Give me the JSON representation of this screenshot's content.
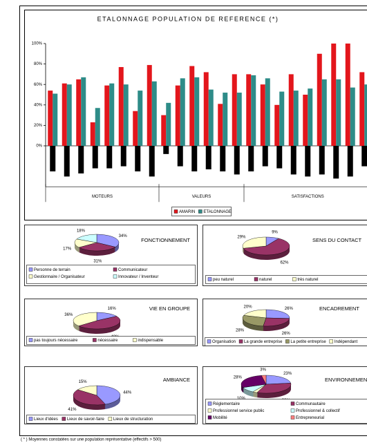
{
  "chart_data": [
    {
      "type": "bar",
      "title": "ETALONNAGE POPULATION DE REFERENCE (*)",
      "categories": [
        null,
        null,
        null,
        null,
        null,
        null,
        null,
        null,
        null,
        null,
        null,
        null,
        null,
        null,
        null,
        null,
        null,
        null,
        null,
        null,
        null,
        null,
        null
      ],
      "groups": [
        {
          "label": "MOTEURS",
          "count": 8
        },
        {
          "label": "VALEURS",
          "count": 6
        },
        {
          "label": "SATISFACTIONS",
          "count": 9
        }
      ],
      "series": [
        {
          "name": "AMARIN",
          "color": "#e3161c",
          "values": [
            54,
            61,
            65,
            23,
            59,
            77,
            34,
            79,
            30,
            59,
            78,
            72,
            41,
            70,
            70,
            60,
            40,
            70,
            50,
            90,
            100,
            100,
            72
          ]
        },
        {
          "name": "ETALONNAGE",
          "color": "#2e8c88",
          "values": [
            51,
            60,
            67,
            37,
            61,
            60,
            54,
            63,
            42,
            66,
            67,
            55,
            52,
            52,
            69,
            66,
            53,
            54,
            56,
            65,
            65,
            57,
            60
          ]
        },
        {
          "color": "#000000",
          "values": [
            -25,
            -30,
            -27,
            -22,
            -22,
            -20,
            -25,
            -30,
            -8,
            -20,
            -25,
            -23,
            -25,
            -28,
            -25,
            -20,
            -22,
            -28,
            -30,
            -28,
            -32,
            -30,
            -20
          ]
        }
      ],
      "ylim": [
        -40,
        100
      ],
      "yticks": [
        {
          "value": 0,
          "label": "0%"
        },
        {
          "value": 20,
          "label": "20%"
        },
        {
          "value": 40,
          "label": "40%"
        },
        {
          "value": 60,
          "label": "60%"
        },
        {
          "value": 80,
          "label": "80%"
        },
        {
          "value": 100,
          "label": "100%"
        }
      ],
      "legend": "bottom"
    },
    {
      "type": "pie",
      "title": "FONCTIONNEMENT",
      "categories": [
        "Personne de terrain",
        "Communicateur",
        "Gestionnaire / Organisateur",
        "Innovateur / Inventeur"
      ],
      "values": [
        34,
        31,
        17,
        18
      ],
      "value_labels": [
        "34%",
        "31%",
        "17%",
        "18%"
      ],
      "colors": [
        "#9999ff",
        "#993366",
        "#ffffcc",
        "#ccffff"
      ]
    },
    {
      "type": "pie",
      "title": "SENS DU CONTACT",
      "categories": [
        "peu naturel",
        "naturel",
        "très naturel"
      ],
      "values": [
        9,
        62,
        29
      ],
      "value_labels": [
        "9%",
        "62%",
        "29%"
      ],
      "colors": [
        "#9999ff",
        "#993366",
        "#ffffcc"
      ]
    },
    {
      "type": "pie",
      "title": "VIE EN GROUPE",
      "categories": [
        "pas toujours nécessaire",
        "nécessaire",
        "indispensable"
      ],
      "values": [
        16,
        48,
        36
      ],
      "value_labels": [
        "16%",
        "48%",
        "36%"
      ],
      "colors": [
        "#9999ff",
        "#993366",
        "#ffffcc"
      ]
    },
    {
      "type": "pie",
      "title": "ENCADREMENT",
      "categories": [
        "Organisation",
        "La grande entreprise",
        "La petite entreprise",
        "Indépendant"
      ],
      "values": [
        26,
        26,
        28,
        20
      ],
      "value_labels": [
        "26%",
        "26%",
        "28%",
        "20%"
      ],
      "colors": [
        "#9999ff",
        "#993366",
        "#999966",
        "#ffffcc"
      ]
    },
    {
      "type": "pie",
      "title": "AMBIANCE",
      "categories": [
        "Lieux d'idées",
        "Lieux de savoir-faire",
        "Lieux de structuration"
      ],
      "values": [
        44,
        41,
        15
      ],
      "value_labels": [
        "44%",
        "41%",
        "15%"
      ],
      "colors": [
        "#9999ff",
        "#993366",
        "#ffffcc"
      ]
    },
    {
      "type": "pie",
      "title": "ENVIRONNEMENT",
      "categories": [
        "Réglementaire",
        "Communautaire",
        "Professionnel service public",
        "Professionnel & collectif",
        "Mobilité",
        "Entrepreneurial"
      ],
      "values": [
        23,
        33,
        3,
        10,
        28,
        3
      ],
      "value_labels": [
        "23%",
        "33%",
        "3%",
        "10%",
        "28%",
        "3%"
      ],
      "colors": [
        "#9999ff",
        "#993366",
        "#ffffcc",
        "#ccffff",
        "#660066",
        "#ff8080"
      ]
    }
  ],
  "footnote": "( * ) Moyennes constatées sur une population représentative (effectifs > 500)"
}
